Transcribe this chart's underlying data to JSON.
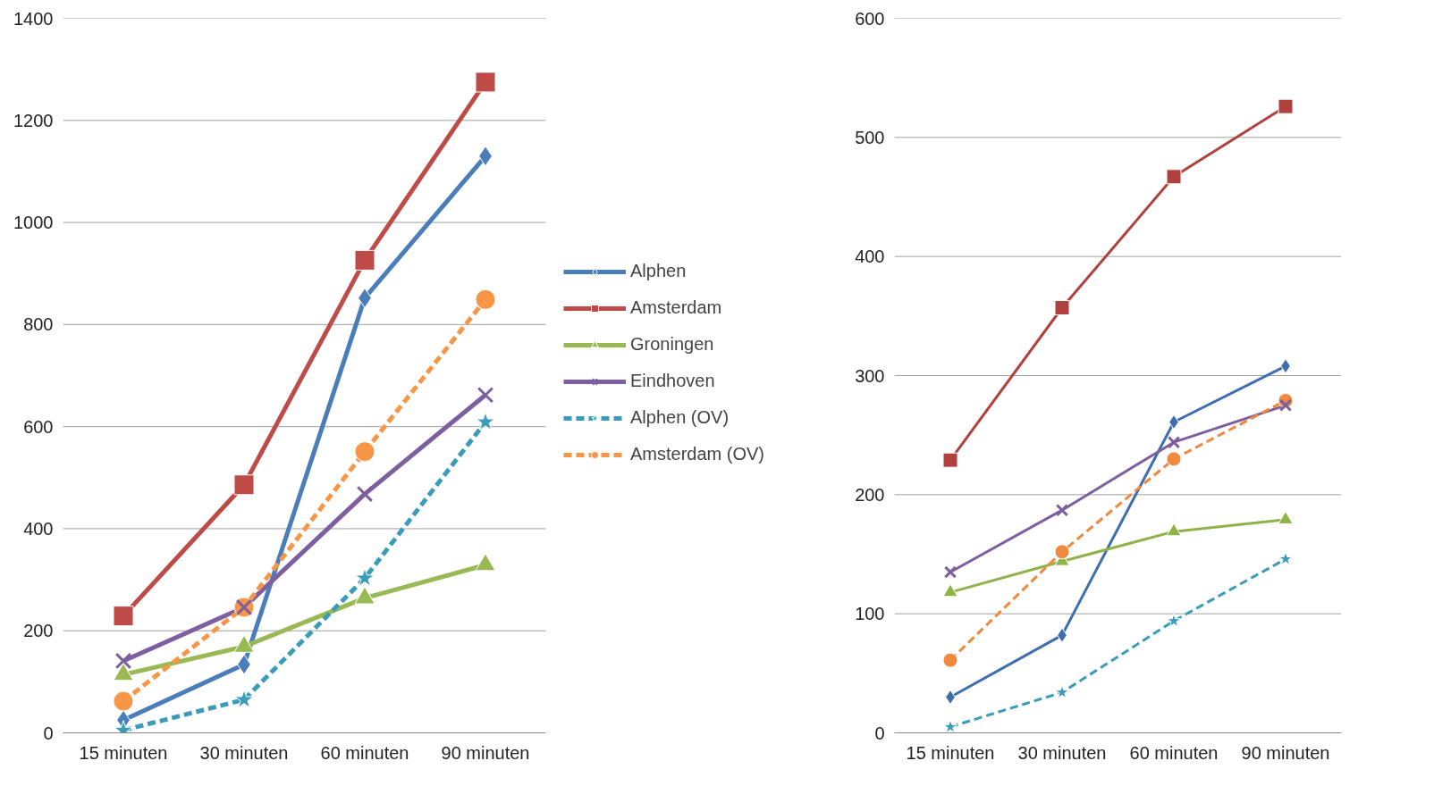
{
  "chart_data": [
    {
      "type": "line",
      "categories": [
        "15 minuten",
        "30 minuten",
        "60 minuten",
        "90 minuten"
      ],
      "ylim": [
        0,
        1400
      ],
      "yticks": [
        0,
        200,
        400,
        600,
        800,
        1000,
        1200,
        1400
      ],
      "grid": "y",
      "legend": "right",
      "series": [
        {
          "name": "Alphen",
          "color": "#4a7ebb",
          "marker": "diamond",
          "line_style": "solid",
          "values": [
            25,
            134,
            852,
            1130
          ]
        },
        {
          "name": "Amsterdam",
          "color": "#be4b48",
          "marker": "square",
          "line_style": "solid",
          "values": [
            229,
            486,
            926,
            1275
          ]
        },
        {
          "name": "Groningen",
          "color": "#98b954",
          "marker": "triangle",
          "line_style": "solid",
          "values": [
            114,
            169,
            264,
            329
          ]
        },
        {
          "name": "Eindhoven",
          "color": "#7d5fa0",
          "marker": "cross",
          "line_style": "solid",
          "values": [
            141,
            246,
            468,
            662
          ]
        },
        {
          "name": "Alphen (OV)",
          "color": "#3a9cb8",
          "marker": "star",
          "line_style": "dashed",
          "values": [
            5,
            65,
            303,
            609
          ]
        },
        {
          "name": "Amsterdam (OV)",
          "color": "#f79646",
          "marker": "circle",
          "line_style": "dashed",
          "values": [
            62,
            246,
            551,
            849
          ]
        }
      ]
    },
    {
      "type": "line",
      "categories": [
        "15 minuten",
        "30 minuten",
        "60 minuten",
        "90 minuten"
      ],
      "ylim": [
        0,
        600
      ],
      "yticks": [
        0,
        100,
        200,
        300,
        400,
        500,
        600
      ],
      "grid": "y",
      "series": [
        {
          "color": "#3d6fb0",
          "marker": "diamond",
          "line_style": "solid",
          "values": [
            30,
            82,
            261,
            308
          ]
        },
        {
          "color": "#b0413e",
          "marker": "square",
          "line_style": "solid",
          "values": [
            229,
            357,
            467,
            526
          ]
        },
        {
          "color": "#8fb349",
          "marker": "triangle",
          "line_style": "solid",
          "values": [
            118,
            144,
            169,
            179
          ]
        },
        {
          "color": "#7d5fa0",
          "marker": "cross",
          "line_style": "solid",
          "values": [
            135,
            187,
            244,
            275
          ]
        },
        {
          "color": "#3a9cb8",
          "marker": "star",
          "line_style": "dashed",
          "values": [
            5,
            34,
            94,
            146
          ]
        },
        {
          "color": "#f0883e",
          "marker": "circle",
          "line_style": "dashed",
          "values": [
            61,
            152,
            230,
            279
          ]
        }
      ]
    }
  ]
}
